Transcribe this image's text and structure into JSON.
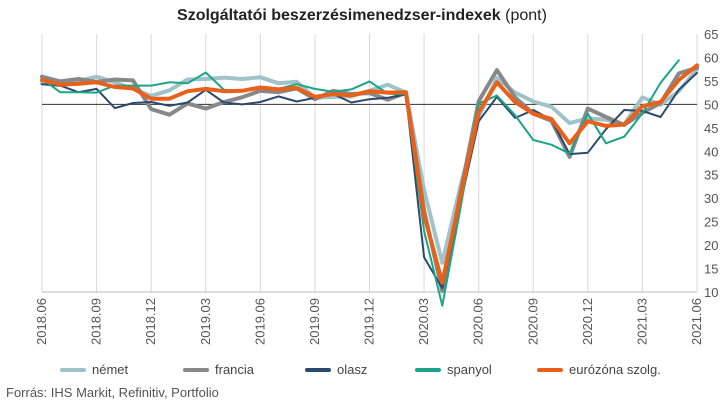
{
  "title": {
    "bold": "Szolgáltatói beszerzésimenedzser-indexek",
    "normal": " (pont)"
  },
  "source": "Forrás: IHS Markit, Refinitiv, Portfolio",
  "chart_data": {
    "type": "line",
    "title": "Szolgáltatói beszerzésimenedzser-indexek (pont)",
    "ylabel": "",
    "xlabel": "",
    "ylim": [
      10,
      65
    ],
    "yticks": [
      10,
      15,
      20,
      25,
      30,
      35,
      40,
      45,
      50,
      55,
      60,
      65
    ],
    "reference_line": 50,
    "grid": "vertical",
    "legend_position": "bottom",
    "x_tick_labels": [
      "2018.06",
      "2018.09",
      "2018.12",
      "2019.03",
      "2019.06",
      "2019.09",
      "2019.12",
      "2020.03",
      "2020.06",
      "2020.09",
      "2020.12",
      "2021.03",
      "2021.06"
    ],
    "x": [
      "2018.06",
      "2018.07",
      "2018.08",
      "2018.09",
      "2018.10",
      "2018.11",
      "2018.12",
      "2019.01",
      "2019.02",
      "2019.03",
      "2019.04",
      "2019.05",
      "2019.06",
      "2019.07",
      "2019.08",
      "2019.09",
      "2019.10",
      "2019.11",
      "2019.12",
      "2020.01",
      "2020.02",
      "2020.03",
      "2020.04",
      "2020.05",
      "2020.06",
      "2020.07",
      "2020.08",
      "2020.09",
      "2020.10",
      "2020.11",
      "2020.12",
      "2021.01",
      "2021.02",
      "2021.03",
      "2021.04",
      "2021.05",
      "2021.06"
    ],
    "series": [
      {
        "name": "német",
        "color": "#9fc3c8",
        "width": 4,
        "values": [
          54.5,
          54.1,
          55.0,
          55.9,
          54.7,
          53.3,
          51.8,
          53.0,
          55.3,
          55.4,
          55.7,
          55.4,
          55.8,
          54.5,
          54.8,
          51.4,
          51.6,
          51.7,
          52.9,
          54.2,
          52.5,
          31.7,
          16.2,
          32.6,
          47.3,
          55.6,
          52.5,
          50.6,
          49.5,
          46.0,
          47.0,
          46.7,
          45.7,
          51.5,
          49.9,
          52.8,
          57.5
        ]
      },
      {
        "name": "francia",
        "color": "#888888",
        "width": 4,
        "values": [
          55.9,
          54.9,
          55.4,
          54.8,
          55.3,
          55.1,
          49.0,
          47.8,
          50.2,
          49.1,
          50.5,
          51.5,
          52.9,
          52.6,
          53.4,
          51.1,
          52.9,
          52.2,
          52.4,
          51.0,
          52.5,
          27.4,
          10.2,
          31.1,
          50.7,
          57.3,
          51.5,
          48.0,
          46.5,
          38.8,
          49.1,
          47.3,
          45.6,
          48.2,
          50.3,
          56.6,
          57.8
        ]
      },
      {
        "name": "olasz",
        "color": "#2b4a6f",
        "width": 2,
        "values": [
          54.3,
          54.0,
          52.6,
          53.3,
          49.2,
          50.3,
          50.5,
          49.7,
          50.4,
          53.1,
          50.4,
          50.0,
          50.5,
          51.7,
          50.6,
          51.4,
          52.2,
          50.4,
          51.1,
          51.4,
          52.1,
          17.4,
          10.8,
          28.9,
          46.4,
          51.6,
          47.1,
          48.8,
          46.7,
          39.4,
          39.7,
          44.7,
          48.8,
          48.6,
          47.3,
          53.1,
          56.7
        ]
      },
      {
        "name": "spanyol",
        "color": "#19a586",
        "width": 2,
        "values": [
          55.4,
          52.6,
          52.6,
          52.5,
          54.0,
          54.0,
          54.0,
          54.7,
          54.5,
          56.8,
          53.1,
          52.9,
          53.6,
          53.3,
          54.3,
          53.3,
          52.7,
          53.2,
          54.9,
          52.3,
          52.1,
          23.0,
          7.1,
          27.9,
          50.2,
          51.9,
          47.7,
          42.4,
          41.4,
          39.5,
          48.0,
          41.7,
          43.1,
          48.1,
          54.6,
          59.4,
          null
        ]
      },
      {
        "name": "eurózóna szolg.",
        "color": "#e8601a",
        "width": 4,
        "values": [
          55.2,
          54.2,
          54.4,
          54.7,
          53.7,
          53.4,
          51.2,
          51.2,
          52.8,
          53.3,
          52.8,
          52.9,
          53.6,
          53.2,
          53.5,
          51.6,
          52.2,
          51.9,
          52.8,
          52.5,
          52.6,
          26.4,
          12.0,
          30.5,
          48.3,
          54.7,
          50.5,
          48.0,
          46.9,
          41.7,
          46.4,
          45.4,
          45.7,
          49.6,
          50.5,
          55.2,
          58.3
        ]
      }
    ]
  }
}
